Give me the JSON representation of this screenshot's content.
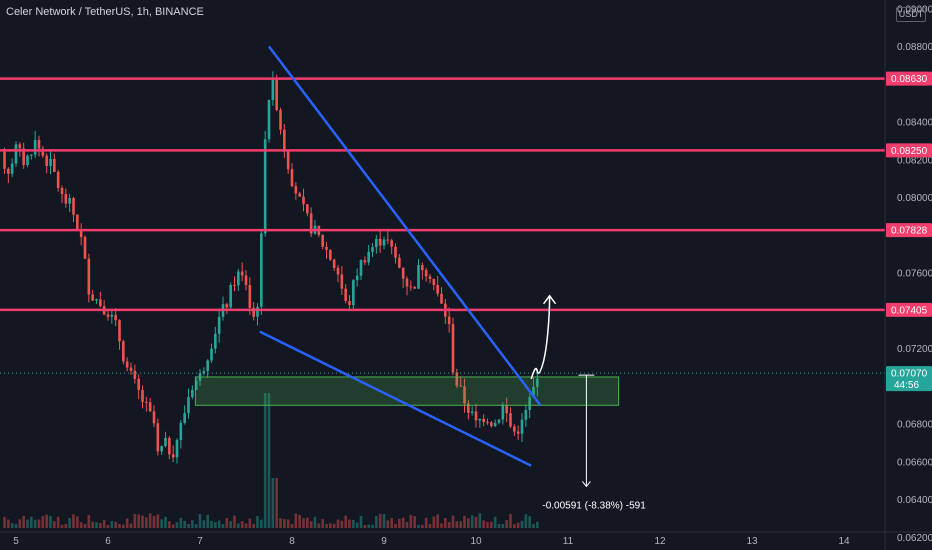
{
  "header": {
    "title": "Celer Network / TetherUS, 1h, BINANCE",
    "currency_badge": "USDT"
  },
  "colors": {
    "background": "#131722",
    "up": "#26a69a",
    "down": "#ef5350",
    "level_line": "#f23d6d",
    "trendline": "#2962ff",
    "zone_fill": "#4caf50",
    "current_price": "#26a69a",
    "annotation": "#ffffff"
  },
  "chart_data": {
    "type": "candlestick",
    "y_ticks": [
      "0.09000",
      "0.08800",
      "0.08400",
      "0.08200",
      "0.08000",
      "0.07600",
      "0.07200",
      "0.06800",
      "0.06600",
      "0.06400",
      "0.06200"
    ],
    "x_ticks": [
      "5",
      "6",
      "7",
      "8",
      "9",
      "10",
      "11",
      "12",
      "13",
      "14"
    ],
    "ylim": [
      0.0616,
      0.0902
    ],
    "levels": [
      {
        "label": "0.08630",
        "value": 0.0863
      },
      {
        "label": "0.08250",
        "value": 0.0825
      },
      {
        "label": "0.07828",
        "value": 0.07828
      },
      {
        "label": "0.07405",
        "value": 0.07405
      }
    ],
    "current_price": {
      "label": "0.07070",
      "value": 0.0707,
      "countdown": "44:56"
    },
    "support_zone": {
      "low": 0.069,
      "high": 0.0705,
      "x_start": 6.95,
      "x_end": 11.55
    },
    "trendlines": [
      {
        "name": "upper",
        "x1": 7.75,
        "y1": 0.088,
        "x2": 10.7,
        "y2": 0.069
      },
      {
        "name": "lower",
        "x1": 7.65,
        "y1": 0.0729,
        "x2": 10.6,
        "y2": 0.0658
      }
    ],
    "measure": {
      "label": "-0.00591 (-8.38%) -591",
      "x": 11.2,
      "from": 0.0706,
      "to": 0.0647
    },
    "projection_arrow": {
      "x_from": 10.6,
      "y_from": 0.0704,
      "x_to": 10.8,
      "y_to": 0.0748
    },
    "close_path": [
      [
        4.5,
        0.081
      ],
      [
        4.6,
        0.0832
      ],
      [
        4.7,
        0.082
      ],
      [
        4.8,
        0.0835
      ],
      [
        4.9,
        0.0812
      ],
      [
        5.0,
        0.0826
      ],
      [
        5.1,
        0.0818
      ],
      [
        5.2,
        0.083
      ],
      [
        5.3,
        0.0822
      ],
      [
        5.4,
        0.0815
      ],
      [
        5.5,
        0.08
      ],
      [
        5.6,
        0.0795
      ],
      [
        5.7,
        0.078
      ],
      [
        5.8,
        0.075
      ],
      [
        5.9,
        0.0745
      ],
      [
        6.0,
        0.074
      ],
      [
        6.1,
        0.073
      ],
      [
        6.2,
        0.071
      ],
      [
        6.3,
        0.07
      ],
      [
        6.4,
        0.069
      ],
      [
        6.5,
        0.068
      ],
      [
        6.55,
        0.066
      ],
      [
        6.6,
        0.067
      ],
      [
        6.7,
        0.0665
      ],
      [
        6.8,
        0.068
      ],
      [
        6.9,
        0.07
      ],
      [
        7.0,
        0.0705
      ],
      [
        7.1,
        0.072
      ],
      [
        7.2,
        0.0735
      ],
      [
        7.3,
        0.0745
      ],
      [
        7.4,
        0.076
      ],
      [
        7.5,
        0.0755
      ],
      [
        7.55,
        0.074
      ],
      [
        7.6,
        0.0735
      ],
      [
        7.65,
        0.0755
      ],
      [
        7.72,
        0.085
      ],
      [
        7.8,
        0.086
      ],
      [
        7.9,
        0.083
      ],
      [
        8.0,
        0.081
      ],
      [
        8.1,
        0.0795
      ],
      [
        8.2,
        0.0785
      ],
      [
        8.3,
        0.0778
      ],
      [
        8.4,
        0.077
      ],
      [
        8.5,
        0.076
      ],
      [
        8.6,
        0.074
      ],
      [
        8.7,
        0.076
      ],
      [
        8.8,
        0.077
      ],
      [
        8.9,
        0.0775
      ],
      [
        9.0,
        0.078
      ],
      [
        9.1,
        0.077
      ],
      [
        9.2,
        0.076
      ],
      [
        9.3,
        0.075
      ],
      [
        9.4,
        0.0765
      ],
      [
        9.5,
        0.076
      ],
      [
        9.6,
        0.0745
      ],
      [
        9.7,
        0.0735
      ],
      [
        9.75,
        0.071
      ],
      [
        9.8,
        0.07
      ],
      [
        9.9,
        0.069
      ],
      [
        10.0,
        0.068
      ],
      [
        10.1,
        0.0685
      ],
      [
        10.2,
        0.068
      ],
      [
        10.3,
        0.069
      ],
      [
        10.4,
        0.0675
      ],
      [
        10.5,
        0.068
      ],
      [
        10.6,
        0.0695
      ],
      [
        10.7,
        0.0707
      ]
    ]
  }
}
